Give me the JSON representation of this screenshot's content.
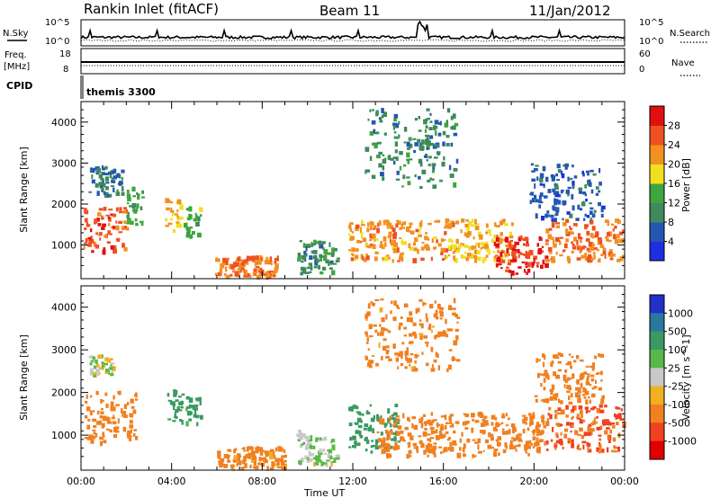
{
  "header": {
    "station": "Rankin Inlet (fitACF)",
    "beam": "Beam 11",
    "date": "11/Jan/2012"
  },
  "summary_panels": {
    "nsky_label": "N.Sky",
    "nsky_ticks": [
      "10^5",
      "10^0"
    ],
    "nsearch_label": "N.Search",
    "freq_label_1": "Freq.",
    "freq_label_2": "[MHz]",
    "freq_ticks": [
      "18",
      "8"
    ],
    "nave_label": "Nave",
    "nave_ticks": [
      "60",
      "0"
    ],
    "cpid_label": "CPID",
    "cpid_value": "themis 3300"
  },
  "chart_data": [
    {
      "type": "heatmap",
      "title": "",
      "xlabel": "",
      "ylabel": "Slant Range [km]",
      "colorbar_label": "Power [dB]",
      "x_ticks": [
        "00:00",
        "04:00",
        "08:00",
        "12:00",
        "16:00",
        "20:00",
        "00:00"
      ],
      "y_ticks": [
        1000,
        2000,
        3000,
        4000
      ],
      "xlim_hours": [
        0,
        24
      ],
      "ylim_km": [
        180,
        4500
      ],
      "colorbar_ticks": [
        4,
        8,
        12,
        16,
        20,
        24,
        28
      ],
      "colorbar_range": [
        0,
        32
      ],
      "colorbar_colors": [
        "#1f2fe0",
        "#2457b0",
        "#3e8a5a",
        "#3fa53f",
        "#f0e020",
        "#f29020",
        "#f05020",
        "#e01010"
      ],
      "regions": [
        {
          "t0": 0.1,
          "t1": 2.0,
          "r0": 800,
          "r1": 1900,
          "value": 26
        },
        {
          "t0": 2.0,
          "t1": 2.7,
          "r0": 1500,
          "r1": 2400,
          "value": 12
        },
        {
          "t0": 0.3,
          "t1": 1.8,
          "r0": 2200,
          "r1": 2900,
          "value": 8
        },
        {
          "t0": 3.7,
          "t1": 4.4,
          "r0": 1300,
          "r1": 2100,
          "value": 20
        },
        {
          "t0": 4.5,
          "t1": 5.3,
          "r0": 1200,
          "r1": 1900,
          "value": 14
        },
        {
          "t0": 5.9,
          "t1": 8.7,
          "r0": 200,
          "r1": 700,
          "value": 24
        },
        {
          "t0": 9.5,
          "t1": 11.3,
          "r0": 300,
          "r1": 1100,
          "value": 10
        },
        {
          "t0": 11.8,
          "t1": 16.5,
          "r0": 600,
          "r1": 1600,
          "value": 22
        },
        {
          "t0": 16.5,
          "t1": 19.0,
          "r0": 600,
          "r1": 1600,
          "value": 20
        },
        {
          "t0": 18.2,
          "t1": 20.5,
          "r0": 300,
          "r1": 1200,
          "value": 28
        },
        {
          "t0": 20.5,
          "t1": 23.9,
          "r0": 600,
          "r1": 1600,
          "value": 24
        },
        {
          "t0": 12.5,
          "t1": 16.6,
          "r0": 2400,
          "r1": 4300,
          "value": 10
        },
        {
          "t0": 19.8,
          "t1": 23.0,
          "r0": 1600,
          "r1": 3000,
          "value": 6
        }
      ]
    },
    {
      "type": "heatmap",
      "title": "",
      "xlabel": "Time UT",
      "ylabel": "Slant Range [km]",
      "colorbar_label": "Velocity [m s^-1]",
      "x_ticks": [
        "00:00",
        "04:00",
        "08:00",
        "12:00",
        "16:00",
        "20:00",
        "00:00"
      ],
      "y_ticks": [
        1000,
        2000,
        3000,
        4000
      ],
      "xlim_hours": [
        0,
        24
      ],
      "ylim_km": [
        180,
        4500
      ],
      "colorbar_ticks": [
        "1000",
        "500",
        "100",
        "25",
        "-25",
        "-100",
        "-500",
        "-1000"
      ],
      "colorbar_colors": [
        "#2030c8",
        "#2a78a0",
        "#3a9a62",
        "#58b848",
        "#c8c8c8",
        "#f0b020",
        "#f08020",
        "#f04020",
        "#e00000"
      ],
      "regions": [
        {
          "t0": 0.1,
          "t1": 2.4,
          "r0": 800,
          "r1": 2000,
          "value": -300
        },
        {
          "t0": 3.8,
          "t1": 4.5,
          "r0": 1300,
          "r1": 2100,
          "value": 200
        },
        {
          "t0": 4.6,
          "t1": 5.3,
          "r0": 1200,
          "r1": 1900,
          "value": 150
        },
        {
          "t0": 6.0,
          "t1": 9.0,
          "r0": 200,
          "r1": 700,
          "value": -150
        },
        {
          "t0": 9.5,
          "t1": 11.3,
          "r0": 300,
          "r1": 1100,
          "value": 30
        },
        {
          "t0": 11.8,
          "t1": 14.0,
          "r0": 600,
          "r1": 1700,
          "value": 300
        },
        {
          "t0": 13.0,
          "t1": 20.5,
          "r0": 500,
          "r1": 1500,
          "value": -400
        },
        {
          "t0": 20.5,
          "t1": 23.9,
          "r0": 600,
          "r1": 1700,
          "value": -500
        },
        {
          "t0": 12.5,
          "t1": 16.6,
          "r0": 2500,
          "r1": 4200,
          "value": -150
        },
        {
          "t0": 20.0,
          "t1": 23.0,
          "r0": 1700,
          "r1": 2900,
          "value": -200
        },
        {
          "t0": 0.3,
          "t1": 1.4,
          "r0": 2400,
          "r1": 2900,
          "value": 0
        }
      ]
    }
  ]
}
